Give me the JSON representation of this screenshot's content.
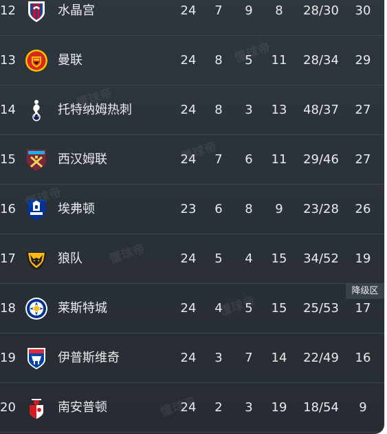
{
  "watermark": "懂球帝",
  "zone_label": "降级区",
  "rows": [
    {
      "rank": "12",
      "team": "水晶宫",
      "played": "24",
      "win": "7",
      "draw": "9",
      "loss": "8",
      "goals": "28/30",
      "pts": "30",
      "badge": "crystal-palace-badge"
    },
    {
      "rank": "13",
      "team": "曼联",
      "played": "24",
      "win": "8",
      "draw": "5",
      "loss": "11",
      "goals": "28/34",
      "pts": "29",
      "badge": "manchester-united-badge"
    },
    {
      "rank": "14",
      "team": "托特纳姆热刺",
      "played": "24",
      "win": "8",
      "draw": "3",
      "loss": "13",
      "goals": "48/37",
      "pts": "27",
      "badge": "tottenham-badge"
    },
    {
      "rank": "15",
      "team": "西汉姆联",
      "played": "24",
      "win": "7",
      "draw": "6",
      "loss": "11",
      "goals": "29/46",
      "pts": "27",
      "badge": "west-ham-badge"
    },
    {
      "rank": "16",
      "team": "埃弗顿",
      "played": "23",
      "win": "6",
      "draw": "8",
      "loss": "9",
      "goals": "23/28",
      "pts": "26",
      "badge": "everton-badge"
    },
    {
      "rank": "17",
      "team": "狼队",
      "played": "24",
      "win": "5",
      "draw": "4",
      "loss": "15",
      "goals": "34/52",
      "pts": "19",
      "badge": "wolves-badge"
    },
    {
      "rank": "18",
      "team": "莱斯特城",
      "played": "24",
      "win": "4",
      "draw": "5",
      "loss": "15",
      "goals": "25/53",
      "pts": "17",
      "badge": "leicester-badge"
    },
    {
      "rank": "19",
      "team": "伊普斯维奇",
      "played": "24",
      "win": "3",
      "draw": "7",
      "loss": "14",
      "goals": "22/49",
      "pts": "16",
      "badge": "ipswich-badge"
    },
    {
      "rank": "20",
      "team": "南安普顿",
      "played": "24",
      "win": "2",
      "draw": "3",
      "loss": "19",
      "goals": "18/54",
      "pts": "9",
      "badge": "southampton-badge"
    }
  ],
  "colors": {
    "panel_background": "#2b3138",
    "row_divider": "#3e464e",
    "text": "#e8ecef",
    "zone_label_background": "#3a4149"
  }
}
